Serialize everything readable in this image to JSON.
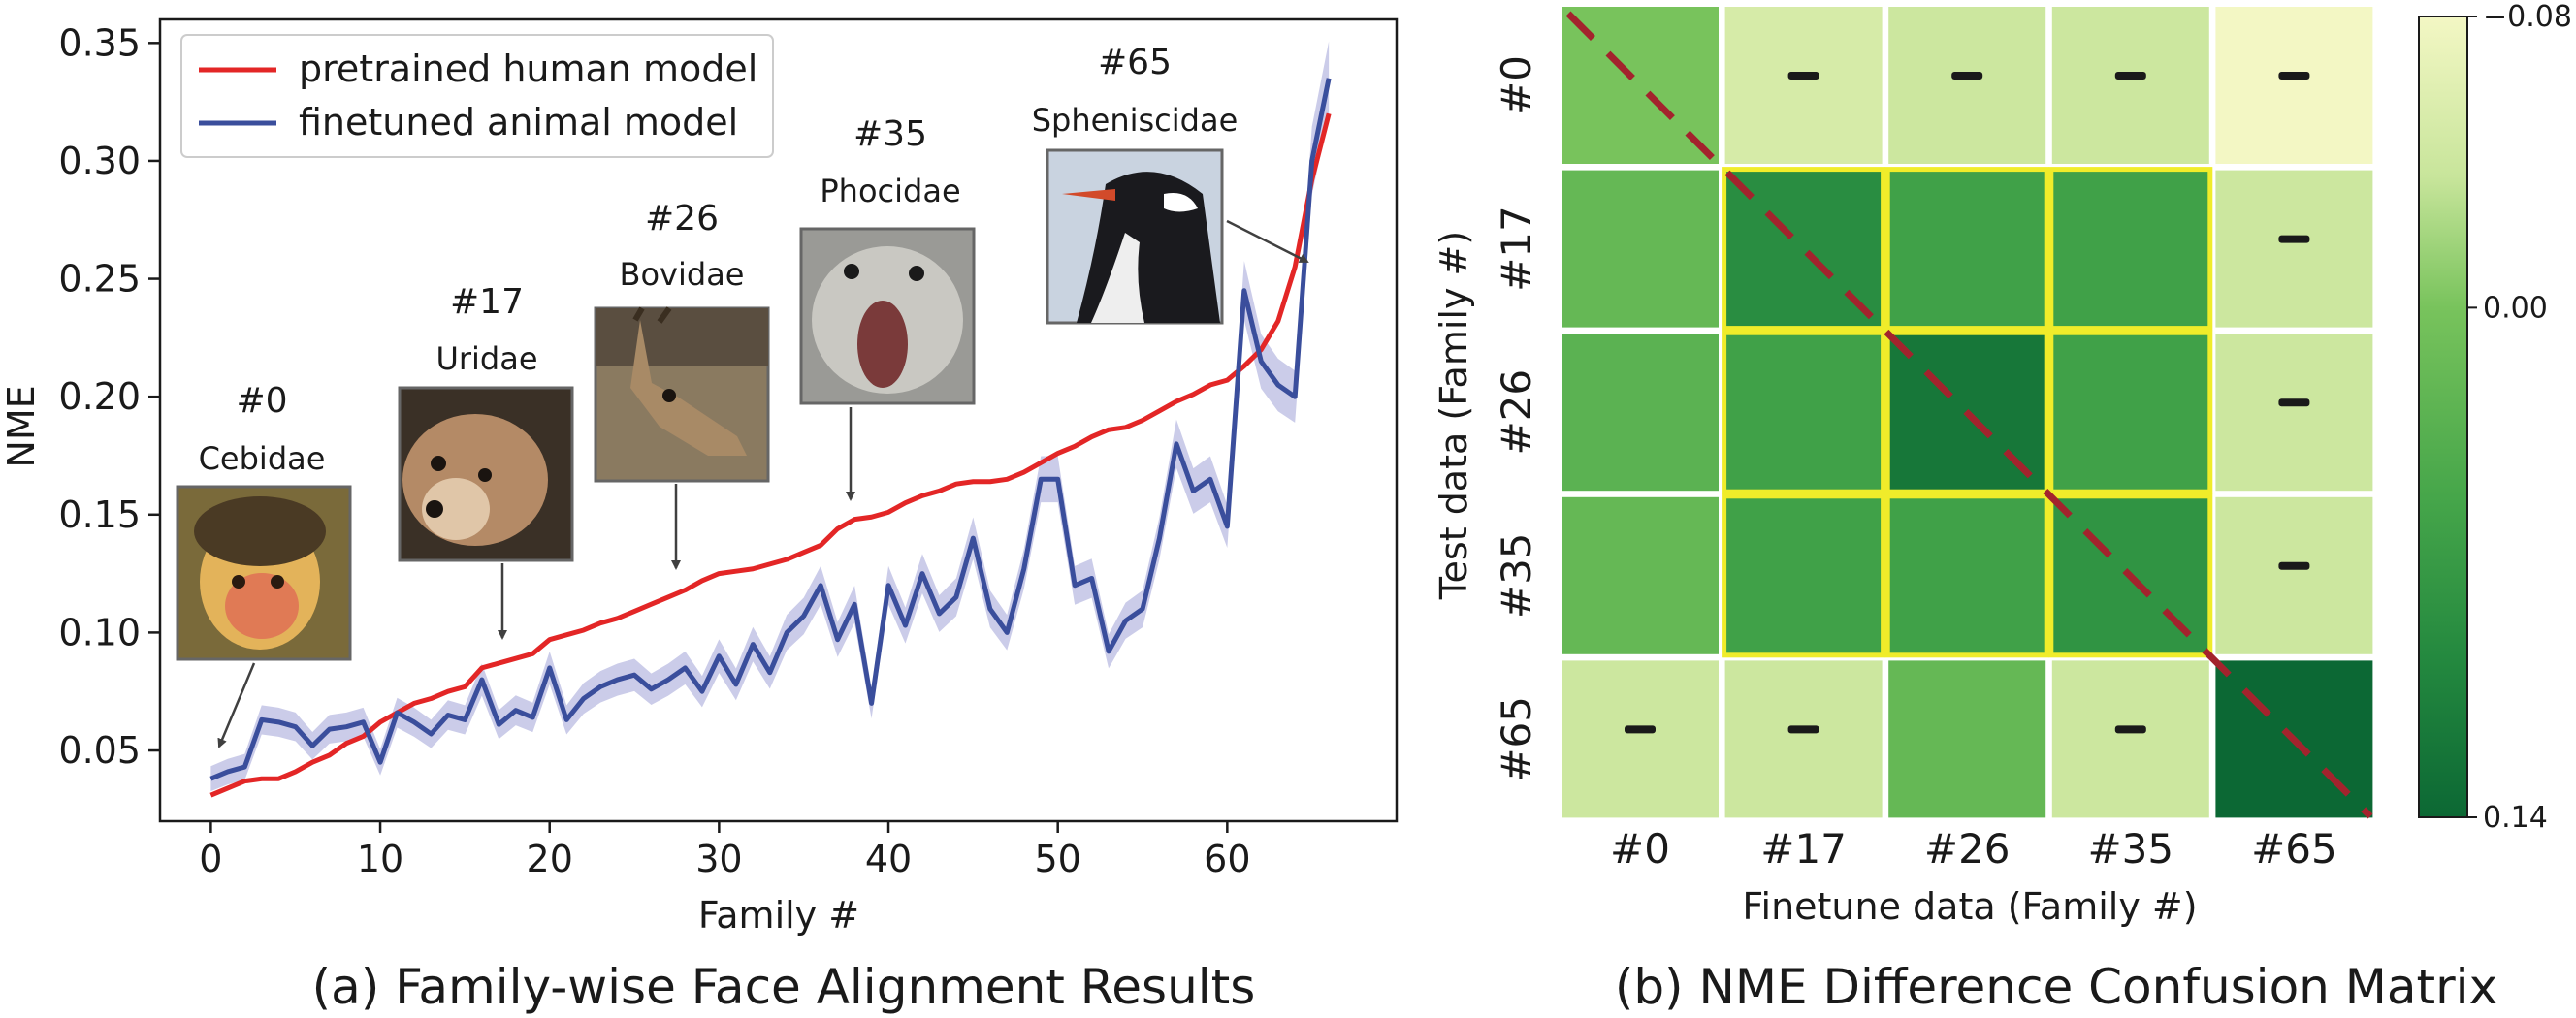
{
  "chart_data": [
    {
      "type": "line",
      "caption": "(a) Family-wise Face Alignment Results",
      "xlabel": "Family #",
      "ylabel": "NME",
      "xlim": [
        -3,
        70
      ],
      "ylim": [
        0.02,
        0.36
      ],
      "x_ticks": [
        0,
        10,
        20,
        30,
        40,
        50,
        60
      ],
      "y_ticks": [
        0.05,
        0.1,
        0.15,
        0.2,
        0.25,
        0.3,
        0.35
      ],
      "y_tick_labels": [
        "0.05",
        "0.10",
        "0.15",
        "0.20",
        "0.25",
        "0.30",
        "0.35"
      ],
      "legend_position": "top-left",
      "series": [
        {
          "name": "pretrained human model",
          "color": "#e32626",
          "values": [
            0.031,
            0.034,
            0.037,
            0.038,
            0.038,
            0.041,
            0.045,
            0.048,
            0.053,
            0.056,
            0.062,
            0.066,
            0.07,
            0.072,
            0.075,
            0.077,
            0.085,
            0.087,
            0.089,
            0.091,
            0.097,
            0.099,
            0.101,
            0.104,
            0.106,
            0.109,
            0.112,
            0.115,
            0.118,
            0.122,
            0.125,
            0.126,
            0.127,
            0.129,
            0.131,
            0.134,
            0.137,
            0.144,
            0.148,
            0.149,
            0.151,
            0.155,
            0.158,
            0.16,
            0.163,
            0.164,
            0.164,
            0.165,
            0.168,
            0.172,
            0.176,
            0.179,
            0.183,
            0.186,
            0.187,
            0.19,
            0.194,
            0.198,
            0.201,
            0.205,
            0.207,
            0.213,
            0.22,
            0.232,
            0.255,
            0.292,
            0.32
          ]
        },
        {
          "name": "finetuned animal model",
          "color": "#3a4e9c",
          "values": [
            0.038,
            0.041,
            0.043,
            0.063,
            0.062,
            0.06,
            0.052,
            0.059,
            0.06,
            0.062,
            0.045,
            0.066,
            0.062,
            0.057,
            0.065,
            0.063,
            0.08,
            0.061,
            0.067,
            0.064,
            0.085,
            0.063,
            0.072,
            0.077,
            0.08,
            0.082,
            0.076,
            0.08,
            0.085,
            0.075,
            0.09,
            0.078,
            0.095,
            0.083,
            0.1,
            0.107,
            0.12,
            0.097,
            0.112,
            0.07,
            0.12,
            0.103,
            0.125,
            0.108,
            0.115,
            0.14,
            0.11,
            0.1,
            0.127,
            0.165,
            0.165,
            0.12,
            0.123,
            0.092,
            0.105,
            0.11,
            0.14,
            0.18,
            0.16,
            0.165,
            0.145,
            0.245,
            0.215,
            0.205,
            0.2,
            0.3,
            0.335
          ]
        }
      ],
      "annotations": [
        {
          "id": "#0",
          "name": "Cebidae",
          "target_x": 0,
          "target_y": 0.043
        },
        {
          "id": "#17",
          "name": "Uridae",
          "target_x": 16.5,
          "target_y": 0.087
        },
        {
          "id": "#26",
          "name": "Bovidae",
          "target_x": 26.5,
          "target_y": 0.116
        },
        {
          "id": "#35",
          "name": "Phocidae",
          "target_x": 37,
          "target_y": 0.144
        },
        {
          "id": "#65",
          "name": "Spheniscidae",
          "target_x": 64.5,
          "target_y": 0.264
        }
      ]
    },
    {
      "type": "heatmap",
      "caption": "(b) NME Difference Confusion Matrix",
      "xlabel": "Finetune data (Family #)",
      "ylabel": "Test data (Family #)",
      "row_labels": [
        "#0",
        "#17",
        "#26",
        "#35",
        "#65"
      ],
      "col_labels": [
        "#0",
        "#17",
        "#26",
        "#35",
        "#65"
      ],
      "colorbar": {
        "min": -0.08,
        "max": 0.14,
        "ticks": [
          -0.08,
          0.0,
          0.14
        ],
        "tick_labels": [
          "−0.08",
          "0.00",
          "0.14"
        ],
        "colors": [
          "#f3f7c4",
          "#c8e59b",
          "#a6d581",
          "#78c35c",
          "#46a64a",
          "#24893f",
          "#0c6834"
        ]
      },
      "values": [
        [
          0.0,
          -0.05,
          -0.04,
          -0.04,
          -0.08
        ],
        [
          0.02,
          0.09,
          0.06,
          0.06,
          -0.04
        ],
        [
          0.03,
          0.06,
          0.12,
          0.06,
          -0.04
        ],
        [
          0.02,
          0.06,
          0.06,
          0.08,
          -0.04
        ],
        [
          -0.04,
          -0.04,
          0.02,
          -0.04,
          0.14
        ]
      ],
      "negative_marks": [
        [
          false,
          true,
          true,
          true,
          true
        ],
        [
          false,
          false,
          false,
          false,
          true
        ],
        [
          false,
          false,
          false,
          false,
          true
        ],
        [
          false,
          false,
          false,
          false,
          true
        ],
        [
          true,
          true,
          false,
          true,
          false
        ]
      ],
      "highlight_block": {
        "rows": [
          "#17",
          "#35"
        ],
        "cols": [
          "#17",
          "#35"
        ],
        "color": "#f0ec2a"
      },
      "diagonal_line_color": "#a3232d"
    }
  ]
}
